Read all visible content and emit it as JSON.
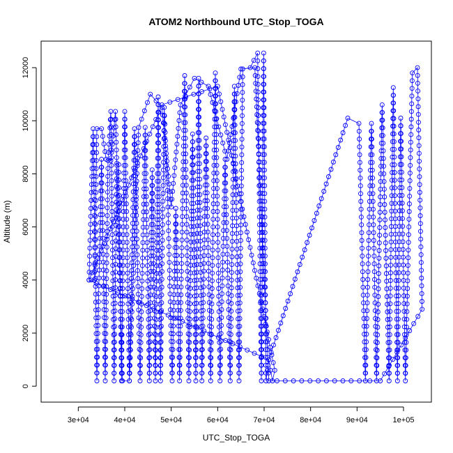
{
  "chart_data": {
    "type": "scatter",
    "title": "ATOM2 Northbound UTC_Stop_TOGA",
    "xlabel": "UTC_Stop_TOGA",
    "ylabel": "Altitude (m)",
    "xlim": [
      22000,
      106000
    ],
    "ylim": [
      -600,
      13000
    ],
    "xticks": [
      30000,
      40000,
      50000,
      60000,
      70000,
      80000,
      90000,
      100000
    ],
    "xtick_labels": [
      "3e+04",
      "4e+04",
      "5e+04",
      "6e+04",
      "7e+04",
      "8e+04",
      "9e+04",
      "1e+05"
    ],
    "yticks": [
      0,
      2000,
      4000,
      6000,
      8000,
      10000,
      12000
    ],
    "ytick_labels": [
      "0",
      "2000",
      "4000",
      "6000",
      "8000",
      "10000",
      "12000"
    ],
    "colors": {
      "series": "#0000ff",
      "axis": "#000000"
    },
    "series": [
      {
        "name": "Altitude",
        "marker": "open-circle",
        "line": true,
        "x": [
          32300,
          33200,
          34000,
          35000,
          35800,
          36400,
          37000,
          37700,
          38300,
          38700,
          39300,
          40000,
          41000,
          42100,
          43300,
          44400,
          45300,
          45900,
          46600,
          47200,
          47700,
          48500,
          49300,
          50200,
          51000,
          51800,
          52900,
          53800,
          54600,
          55300,
          55900,
          56600,
          57500,
          58500,
          59500,
          60500,
          61600,
          62700,
          63600,
          64600,
          65400,
          67000,
          68600,
          69400,
          69900,
          70400,
          71000,
          71800,
          72300,
          60000,
          48000,
          32300,
          71000,
          88000,
          90400,
          91800,
          93100,
          94200,
          95400,
          96900,
          97800,
          98700,
          99400,
          100400,
          101900,
          103000,
          104000,
          95000,
          90500,
          71000,
          68000,
          65000,
          62000,
          58000,
          55000,
          52000,
          50000,
          48000,
          45500,
          43000,
          41000,
          39500,
          38000,
          37000,
          36000,
          35000,
          34000,
          33500,
          32800
        ],
        "y": [
          4000,
          9700,
          200,
          8550,
          200,
          8500,
          10350,
          200,
          8400,
          8350,
          200,
          10350,
          200,
          9700,
          200,
          9750,
          200,
          8150,
          200,
          10900,
          200,
          10500,
          6750,
          200,
          6700,
          200,
          11700,
          200,
          9500,
          200,
          11600,
          200,
          9350,
          200,
          11800,
          200,
          8550,
          200,
          11300,
          200,
          11950,
          12000,
          12550,
          200,
          12550,
          200,
          1000,
          200,
          600,
          11300,
          10600,
          4000,
          1000,
          10100,
          9900,
          200,
          9900,
          200,
          10600,
          200,
          11250,
          200,
          10100,
          200,
          11800,
          12000,
          2900,
          200,
          200,
          200,
          12000,
          11950,
          8550,
          11300,
          11600,
          10600,
          6750,
          10500,
          11000,
          9750,
          200,
          200,
          10350,
          8500,
          8550,
          9700,
          9700,
          4000,
          4000
        ]
      }
    ]
  }
}
